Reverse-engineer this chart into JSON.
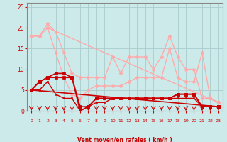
{
  "bg_color": "#cceaea",
  "grid_color": "#aacccc",
  "xlabel": "Vent moyen/en rafales ( km/h )",
  "xlabel_color": "#cc0000",
  "tick_color": "#cc0000",
  "arrow_color": "#cc0000",
  "xlim": [
    -0.5,
    23.5
  ],
  "ylim": [
    0,
    26
  ],
  "yticks": [
    0,
    5,
    10,
    15,
    20,
    25
  ],
  "xticks": [
    0,
    1,
    2,
    3,
    4,
    5,
    6,
    7,
    8,
    9,
    10,
    11,
    12,
    13,
    14,
    15,
    16,
    17,
    18,
    19,
    20,
    21,
    22,
    23
  ],
  "lines_light": [
    {
      "x": [
        0,
        1,
        2,
        3,
        4,
        5,
        6,
        7,
        8,
        9,
        10,
        11,
        12,
        13,
        14,
        15,
        16,
        17,
        18,
        19,
        20,
        21,
        22,
        23
      ],
      "y": [
        18,
        18,
        21,
        19,
        14,
        9,
        8,
        8,
        8,
        8,
        13,
        9,
        13,
        13,
        13,
        10,
        13,
        18,
        13,
        10,
        10,
        3,
        3,
        2
      ],
      "color": "#ffaaaa",
      "lw": 1.0,
      "marker": "D",
      "ms": 2.5
    },
    {
      "x": [
        0,
        1,
        2,
        3,
        4,
        5,
        6,
        7,
        8,
        9,
        10,
        11,
        12,
        13,
        14,
        15,
        16,
        17,
        18,
        19,
        20,
        21,
        22,
        23
      ],
      "y": [
        18,
        18,
        20,
        14,
        8,
        4,
        3,
        5,
        6,
        6,
        6,
        6,
        7,
        8,
        8,
        8,
        8,
        15,
        8,
        7,
        7,
        14,
        3,
        2
      ],
      "color": "#ffaaaa",
      "lw": 1.0,
      "marker": "D",
      "ms": 2.5
    },
    {
      "x": [
        2,
        23
      ],
      "y": [
        20,
        2
      ],
      "color": "#ffaaaa",
      "lw": 1.0,
      "marker": "D",
      "ms": 2.5
    }
  ],
  "lines_dark": [
    {
      "x": [
        0,
        1,
        2,
        3,
        4,
        5,
        6,
        7,
        8,
        9,
        10,
        11,
        12,
        13,
        14,
        15,
        16,
        17,
        18,
        19,
        20,
        21,
        22,
        23
      ],
      "y": [
        5,
        7,
        8,
        9,
        9,
        8,
        0,
        1,
        3,
        3,
        3,
        3,
        3,
        3,
        3,
        3,
        3,
        3,
        4,
        4,
        4,
        1,
        1,
        1
      ],
      "color": "#cc0000",
      "lw": 1.2,
      "marker": "s",
      "ms": 2.5
    },
    {
      "x": [
        0,
        1,
        2,
        3,
        4,
        5,
        6,
        7,
        8,
        9,
        10,
        11,
        12,
        13,
        14,
        15,
        16,
        17,
        18,
        19,
        20,
        21,
        22,
        23
      ],
      "y": [
        5,
        7,
        8,
        8,
        8,
        8,
        1,
        1,
        3,
        3,
        3,
        3,
        3,
        3,
        3,
        3,
        3,
        3,
        4,
        4,
        4,
        1,
        1,
        1
      ],
      "color": "#cc0000",
      "lw": 1.2,
      "marker": "s",
      "ms": 2.5
    },
    {
      "x": [
        0,
        1,
        2,
        3,
        4,
        5,
        6,
        7,
        8,
        9,
        10,
        11,
        12,
        13,
        14,
        15,
        16,
        17,
        18,
        19,
        20,
        21,
        22,
        23
      ],
      "y": [
        5,
        5,
        7,
        4,
        3,
        3,
        0,
        1,
        2,
        2,
        3,
        3,
        3,
        3,
        3,
        3,
        3,
        3,
        3,
        3,
        3,
        1,
        1,
        1
      ],
      "color": "#cc0000",
      "lw": 1.0,
      "marker": "s",
      "ms": 2.0
    },
    {
      "x": [
        0,
        23
      ],
      "y": [
        5,
        1
      ],
      "color": "#cc0000",
      "lw": 1.2,
      "marker": "s",
      "ms": 2.5
    }
  ]
}
